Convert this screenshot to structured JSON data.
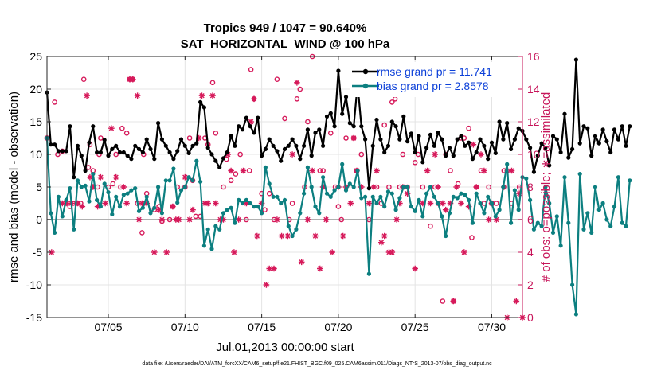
{
  "chart_data": {
    "type": "line",
    "title_line1": "Tropics 949 / 1047 = 90.640%",
    "title_line2": "SAT_HORIZONTAL_WIND @ 100 hPa",
    "xlabel": "Jul.01,2013 00:00:00 start",
    "ylabel_left": "rmse and bias (model - observation)",
    "ylabel_right": "# of obs: o=possible; ∗=assimilated",
    "xlim": [
      1,
      32
    ],
    "ylim_left": [
      -15,
      25
    ],
    "ylim_right": [
      0,
      16
    ],
    "xticks": [
      5,
      10,
      15,
      20,
      25,
      30
    ],
    "xtick_labels": [
      "07/05",
      "07/10",
      "07/15",
      "07/20",
      "07/25",
      "07/30"
    ],
    "yticks_left": [
      -15,
      -10,
      -5,
      0,
      5,
      10,
      15,
      20,
      25
    ],
    "yticks_right": [
      0,
      2,
      4,
      6,
      8,
      10,
      12,
      14,
      16
    ],
    "footnote": "data file: /Users/raeder/DAI/ATM_forcXX/CAM6_setup/f.e21.FHIST_BGC.f09_025.CAM6assim.011/Diags_NTrS_2013-07/obs_diag_output.nc",
    "colors": {
      "rmse": "#000000",
      "bias": "#0c7f80",
      "obs": "#d6195a",
      "axis_right": "#c7155a",
      "zero_line": "#b0b0b0",
      "legend_text": "#0b3fd8"
    },
    "series": [
      {
        "name": "rmse grand pr = 11.741",
        "x_start": 1,
        "x_step": 0.25,
        "values": [
          19.5,
          11.5,
          11.5,
          10.5,
          10.5,
          10.5,
          14.3,
          6.5,
          11.3,
          9.8,
          7.5,
          11.8,
          14.3,
          10.3,
          10.3,
          12.2,
          9.8,
          10.8,
          11.3,
          10.3,
          10.3,
          9.8,
          9.3,
          11.3,
          10.8,
          10.3,
          12.3,
          10.8,
          9.3,
          14.8,
          12.3,
          11.3,
          10.3,
          9.3,
          10.5,
          12.3,
          11.3,
          10.2,
          11.3,
          11.7,
          18.0,
          17.2,
          11.0,
          10.0,
          9.0,
          8.0,
          9.4,
          10.3,
          12.8,
          11.3,
          14.3,
          13.8,
          15.6,
          14.3,
          13.3,
          15.6,
          9.8,
          10.8,
          12.3,
          11.3,
          10.5,
          9.0,
          10.8,
          11.3,
          12.3,
          11.3,
          9.3,
          11.3,
          13.8,
          9.8,
          13.3,
          13.8,
          11.3,
          15.8,
          16.3,
          14.3,
          22.8,
          16.2,
          18.8,
          14.8,
          14.3,
          20.8,
          14.3,
          12.3,
          4.8,
          11.3,
          15.3,
          12.3,
          10.3,
          11.3,
          15.0,
          14.3,
          12.3,
          15.8,
          12.0,
          13.2,
          10.3,
          12.8,
          8.8,
          11.0,
          13.0,
          11.3,
          13.3,
          12.3,
          9.8,
          11.0,
          9.8,
          12.3,
          12.8,
          11.3,
          11.8,
          9.3,
          10.3,
          12.3,
          11.3,
          9.3,
          11.8,
          10.2,
          15.0,
          12.3,
          14.8,
          10.8,
          12.3,
          14.0,
          13.6,
          12.3,
          11.0,
          7.3,
          9.8,
          11.7,
          11.0,
          8.3,
          12.8,
          12.3,
          10.3,
          16.2,
          9.5,
          10.8,
          24.5,
          11.7,
          14.3,
          14.0,
          9.8,
          12.8,
          11.7,
          13.8,
          12.0,
          10.3,
          13.8,
          12.3,
          14.3,
          11.3,
          14.3
        ]
      },
      {
        "name": "bias grand pr = 2.8578",
        "x_start": 1,
        "x_step": 0.25,
        "values": [
          12.5,
          1.0,
          -2.0,
          3.5,
          0.5,
          3.0,
          4.8,
          -1.5,
          6.0,
          5.0,
          5.2,
          2.8,
          7.0,
          3.0,
          2.0,
          5.5,
          4.2,
          0.8,
          3.5,
          2.0,
          3.8,
          4.0,
          4.5,
          4.8,
          1.3,
          1.8,
          3.5,
          1.0,
          1.8,
          5.0,
          1.0,
          6.0,
          6.0,
          7.8,
          2.6,
          4.5,
          5.0,
          6.5,
          6.0,
          9.0,
          5.8,
          -4.0,
          -1.5,
          -4.5,
          -1.0,
          -1.5,
          1.0,
          1.5,
          1.8,
          -0.5,
          3.0,
          2.5,
          3.0,
          2.5,
          2.0,
          2.0,
          1.0,
          8.0,
          5.5,
          3.5,
          3.5,
          2.5,
          3.0,
          -1.0,
          -2.5,
          -1.5,
          1.0,
          4.0,
          8.0,
          5.0,
          2.0,
          1.0,
          6.5,
          4.0,
          3.5,
          4.5,
          5.0,
          8.5,
          4.5,
          5.5,
          5.0,
          7.5,
          3.3,
          3.5,
          -8.3,
          3.5,
          2.5,
          3.5,
          2.0,
          4.3,
          4.0,
          1.5,
          3.3,
          5.0,
          5.0,
          2.0,
          1.3,
          3.0,
          0.5,
          4.0,
          5.0,
          3.5,
          2.5,
          0.5,
          -2.5,
          1.0,
          3.5,
          3.3,
          4.0,
          3.8,
          3.0,
          -0.5,
          4.0,
          2.5,
          1.0,
          3.5,
          2.5,
          0.5,
          1.5,
          5.0,
          8.5,
          -0.5,
          4.5,
          1.5,
          6.5,
          6.3,
          3.0,
          -1.5,
          -0.5,
          -1.0,
          5.0,
          2.5,
          -2.0,
          0.5,
          -4.0,
          6.5,
          -0.5,
          -10.0,
          -14.5,
          7.0,
          -1.5,
          1.0,
          -2.0,
          5.0,
          1.5,
          2.5,
          0.0,
          -1.0,
          2.0,
          6.5,
          -0.5,
          -1.0,
          6.0
        ]
      }
    ],
    "obs_possible": [
      [
        1.0,
        11.0
      ],
      [
        1.5,
        13.2
      ],
      [
        1.7,
        10.0
      ],
      [
        2.0,
        10.2
      ],
      [
        2.2,
        7.0
      ],
      [
        2.5,
        6.8
      ],
      [
        2.7,
        7.0
      ],
      [
        3.0,
        7.0
      ],
      [
        3.2,
        7.0
      ],
      [
        3.4,
        14.6
      ],
      [
        3.7,
        9.2
      ],
      [
        3.8,
        10.6
      ],
      [
        4.0,
        9.0
      ],
      [
        4.3,
        8.0
      ],
      [
        4.4,
        10.0
      ],
      [
        4.5,
        11.0
      ],
      [
        5.0,
        8.0
      ],
      [
        5.3,
        8.2
      ],
      [
        5.5,
        10.0
      ],
      [
        5.8,
        8.0
      ],
      [
        5.9,
        11.6
      ],
      [
        6.2,
        11.3
      ],
      [
        6.4,
        14.6
      ],
      [
        6.6,
        14.6
      ],
      [
        6.9,
        7.0
      ],
      [
        7.2,
        5.2
      ],
      [
        7.3,
        10.0
      ],
      [
        7.5,
        7.6
      ],
      [
        8.0,
        6.6
      ],
      [
        8.3,
        6.8
      ],
      [
        8.5,
        5.9
      ],
      [
        9.0,
        6.0
      ],
      [
        9.2,
        6.8
      ],
      [
        9.5,
        8.0
      ],
      [
        10.0,
        8.0
      ],
      [
        10.3,
        11.0
      ],
      [
        10.5,
        8.4
      ],
      [
        10.7,
        6.2
      ],
      [
        11.0,
        6.2
      ],
      [
        11.3,
        11.0
      ],
      [
        11.5,
        10.6
      ],
      [
        11.8,
        14.4
      ],
      [
        12.0,
        11.3
      ],
      [
        12.5,
        8.0
      ],
      [
        12.7,
        9.7
      ],
      [
        13.0,
        8.4
      ],
      [
        13.3,
        8.8
      ],
      [
        13.6,
        10.0
      ],
      [
        14.0,
        6.0
      ],
      [
        14.2,
        9.0
      ],
      [
        14.3,
        15.2
      ],
      [
        14.5,
        13.4
      ],
      [
        15.0,
        7.6
      ],
      [
        15.2,
        6.6
      ],
      [
        15.5,
        7.6
      ],
      [
        15.8,
        6.0
      ],
      [
        16.0,
        14.6
      ],
      [
        16.5,
        12.2
      ],
      [
        16.8,
        6.0
      ],
      [
        17.0,
        7.0
      ],
      [
        17.3,
        13.4
      ],
      [
        17.5,
        14.0
      ],
      [
        17.8,
        8.0
      ],
      [
        18.0,
        12.0
      ],
      [
        18.3,
        16.0
      ],
      [
        18.8,
        9.0
      ],
      [
        19.0,
        9.0
      ],
      [
        19.5,
        11.3
      ],
      [
        19.8,
        8.0
      ],
      [
        20.0,
        6.8
      ],
      [
        20.2,
        6.0
      ],
      [
        20.5,
        11.0
      ],
      [
        21.0,
        11.0
      ],
      [
        21.2,
        9.0
      ],
      [
        21.5,
        10.0
      ],
      [
        22.0,
        6.0
      ],
      [
        22.5,
        8.0
      ],
      [
        22.8,
        7.0
      ],
      [
        23.0,
        11.8
      ],
      [
        23.3,
        8.0
      ],
      [
        23.5,
        13.2
      ],
      [
        23.7,
        13.4
      ],
      [
        24.0,
        8.0
      ],
      [
        24.2,
        10.0
      ],
      [
        24.3,
        8.0
      ],
      [
        24.5,
        8.0
      ],
      [
        25.0,
        9.5
      ],
      [
        25.2,
        10.0
      ],
      [
        25.5,
        8.0
      ],
      [
        26.0,
        5.6
      ],
      [
        26.3,
        8.0
      ],
      [
        26.5,
        7.0
      ],
      [
        26.8,
        1.0
      ],
      [
        27.0,
        10.0
      ],
      [
        27.3,
        9.0
      ],
      [
        27.5,
        1.0
      ],
      [
        27.8,
        8.2
      ],
      [
        28.0,
        11.0
      ],
      [
        28.2,
        11.0
      ],
      [
        28.5,
        11.6
      ],
      [
        28.7,
        4.9
      ],
      [
        29.0,
        8.0
      ],
      [
        29.3,
        9.0
      ],
      [
        29.5,
        7.0
      ],
      [
        29.8,
        8.0
      ],
      [
        30.0,
        7.0
      ],
      [
        30.3,
        7.0
      ],
      [
        30.8,
        9.0
      ],
      [
        31.0,
        9.0
      ],
      [
        31.3,
        7.0
      ],
      [
        31.8,
        8.0
      ]
    ],
    "obs_assimilated": [
      [
        1.0,
        11.0
      ],
      [
        1.3,
        4.0
      ],
      [
        2.0,
        7.0
      ],
      [
        2.3,
        7.0
      ],
      [
        2.6,
        7.0
      ],
      [
        3.0,
        7.0
      ],
      [
        3.3,
        6.8
      ],
      [
        3.6,
        13.6
      ],
      [
        3.8,
        8.6
      ],
      [
        4.0,
        8.0
      ],
      [
        4.3,
        6.8
      ],
      [
        4.5,
        8.6
      ],
      [
        4.8,
        7.0
      ],
      [
        5.2,
        11.6
      ],
      [
        5.5,
        8.6
      ],
      [
        6.0,
        8.0
      ],
      [
        6.2,
        7.0
      ],
      [
        6.4,
        14.6
      ],
      [
        6.6,
        14.6
      ],
      [
        6.9,
        13.6
      ],
      [
        7.0,
        6.0
      ],
      [
        7.2,
        7.0
      ],
      [
        7.5,
        7.0
      ],
      [
        8.0,
        4.0
      ],
      [
        8.3,
        6.6
      ],
      [
        8.5,
        6.0
      ],
      [
        8.8,
        4.0
      ],
      [
        9.2,
        6.8
      ],
      [
        9.4,
        6.0
      ],
      [
        9.6,
        6.0
      ],
      [
        10.0,
        8.6
      ],
      [
        10.3,
        6.0
      ],
      [
        10.5,
        6.6
      ],
      [
        10.9,
        11.0
      ],
      [
        11.1,
        13.6
      ],
      [
        11.3,
        7.0
      ],
      [
        11.5,
        7.0
      ],
      [
        11.8,
        13.6
      ],
      [
        12.0,
        7.0
      ],
      [
        12.3,
        6.0
      ],
      [
        12.5,
        6.0
      ],
      [
        12.8,
        10.0
      ],
      [
        13.0,
        9.0
      ],
      [
        13.2,
        4.0
      ],
      [
        13.5,
        6.0
      ],
      [
        13.8,
        9.0
      ],
      [
        14.0,
        7.0
      ],
      [
        14.3,
        12.0
      ],
      [
        14.5,
        13.4
      ],
      [
        14.7,
        5.0
      ],
      [
        15.0,
        7.0
      ],
      [
        15.3,
        2.0
      ],
      [
        15.5,
        3.0
      ],
      [
        15.8,
        3.0
      ],
      [
        16.0,
        6.0
      ],
      [
        16.3,
        5.0
      ],
      [
        16.7,
        5.0
      ],
      [
        17.0,
        10.0
      ],
      [
        17.3,
        14.4
      ],
      [
        17.6,
        3.4
      ],
      [
        18.0,
        6.0
      ],
      [
        18.3,
        9.0
      ],
      [
        18.5,
        5.0
      ],
      [
        18.8,
        3.0
      ],
      [
        19.0,
        8.0
      ],
      [
        19.2,
        6.0
      ],
      [
        19.6,
        4.0
      ],
      [
        20.0,
        8.0
      ],
      [
        20.3,
        5.0
      ],
      [
        20.5,
        8.0
      ],
      [
        20.8,
        7.0
      ],
      [
        21.0,
        11.0
      ],
      [
        21.2,
        9.0
      ],
      [
        21.5,
        8.0
      ],
      [
        22.0,
        7.0
      ],
      [
        22.3,
        8.0
      ],
      [
        22.5,
        9.0
      ],
      [
        22.8,
        4.6
      ],
      [
        23.0,
        5.0
      ],
      [
        23.3,
        4.0
      ],
      [
        23.5,
        4.0
      ],
      [
        23.8,
        6.0
      ],
      [
        24.0,
        7.0
      ],
      [
        24.2,
        8.0
      ],
      [
        24.5,
        7.6
      ],
      [
        25.0,
        3.0
      ],
      [
        25.5,
        7.0
      ],
      [
        25.8,
        9.0
      ],
      [
        26.0,
        7.0
      ],
      [
        26.3,
        10.0
      ],
      [
        26.5,
        8.0
      ],
      [
        26.8,
        7.0
      ],
      [
        27.0,
        6.6
      ],
      [
        27.3,
        7.0
      ],
      [
        27.5,
        1.0
      ],
      [
        27.7,
        8.0
      ],
      [
        28.0,
        7.0
      ],
      [
        28.2,
        4.0
      ],
      [
        28.5,
        6.8
      ],
      [
        28.8,
        10.6
      ],
      [
        29.0,
        8.0
      ],
      [
        29.3,
        10.0
      ],
      [
        29.5,
        9.0
      ],
      [
        29.8,
        6.0
      ],
      [
        30.0,
        7.0
      ],
      [
        30.3,
        6.0
      ],
      [
        30.8,
        8.0
      ],
      [
        31.0,
        0.0
      ],
      [
        31.3,
        9.0
      ],
      [
        31.6,
        1.0
      ],
      [
        31.8,
        7.6
      ],
      [
        32.0,
        0.0
      ]
    ]
  }
}
